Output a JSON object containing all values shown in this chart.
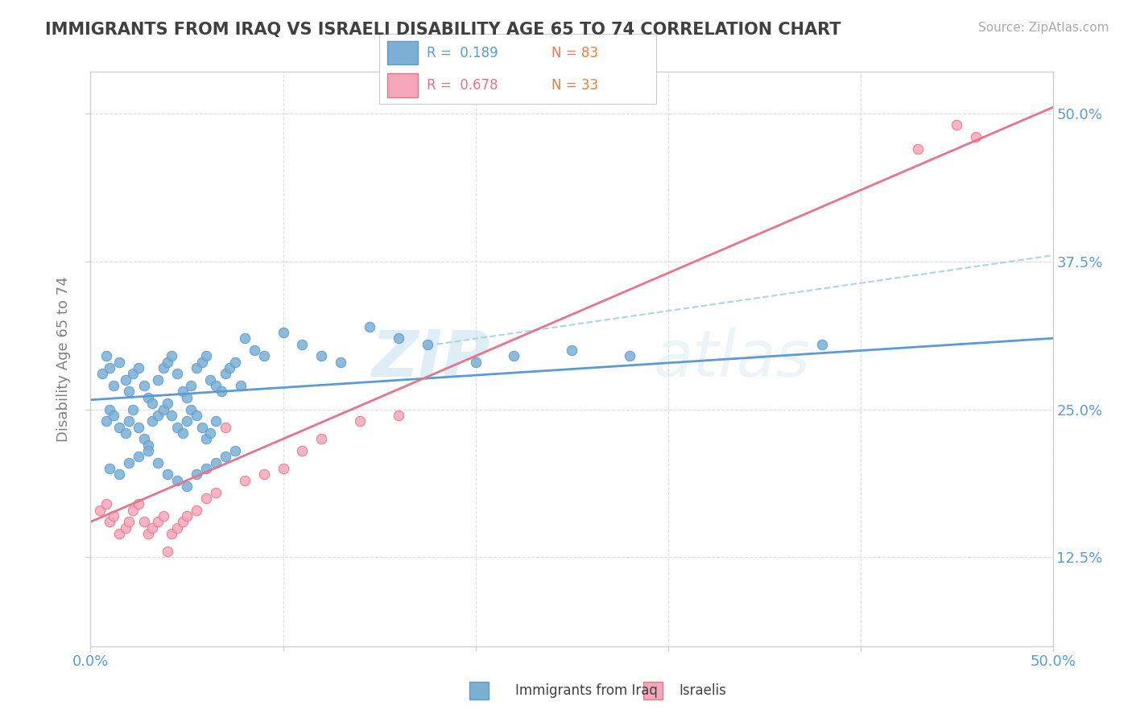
{
  "title": "IMMIGRANTS FROM IRAQ VS ISRAELI DISABILITY AGE 65 TO 74 CORRELATION CHART",
  "source_text": "Source: ZipAtlas.com",
  "ylabel": "Disability Age 65 to 74",
  "xlim": [
    0.0,
    0.5
  ],
  "ylim": [
    0.05,
    0.535
  ],
  "ytick_labels": [
    "12.5%",
    "25.0%",
    "37.5%",
    "50.0%"
  ],
  "yticks": [
    0.125,
    0.25,
    0.375,
    0.5
  ],
  "color_blue": "#7bafd4",
  "color_pink": "#f4a7b9",
  "color_blue_line": "#5b9bd5",
  "color_pink_line": "#e8748a",
  "color_dashed": "#a8d8d8",
  "color_title": "#404040",
  "color_axis_labels": "#5b9bd5",
  "color_n_labels": "#e87d3e",
  "background_color": "#ffffff",
  "watermark_text": "ZIPatlas",
  "blue_dots_x": [
    0.006,
    0.008,
    0.01,
    0.012,
    0.015,
    0.018,
    0.02,
    0.022,
    0.025,
    0.028,
    0.03,
    0.032,
    0.035,
    0.038,
    0.04,
    0.042,
    0.045,
    0.048,
    0.05,
    0.052,
    0.055,
    0.058,
    0.06,
    0.062,
    0.065,
    0.068,
    0.07,
    0.072,
    0.075,
    0.078,
    0.008,
    0.01,
    0.012,
    0.015,
    0.018,
    0.02,
    0.022,
    0.025,
    0.028,
    0.03,
    0.032,
    0.035,
    0.038,
    0.04,
    0.042,
    0.045,
    0.048,
    0.05,
    0.052,
    0.055,
    0.058,
    0.06,
    0.062,
    0.065,
    0.01,
    0.015,
    0.02,
    0.025,
    0.03,
    0.035,
    0.04,
    0.045,
    0.05,
    0.055,
    0.06,
    0.065,
    0.07,
    0.075,
    0.08,
    0.085,
    0.09,
    0.1,
    0.11,
    0.12,
    0.13,
    0.145,
    0.16,
    0.175,
    0.2,
    0.22,
    0.25,
    0.28,
    0.38
  ],
  "blue_dots_y": [
    0.28,
    0.295,
    0.285,
    0.27,
    0.29,
    0.275,
    0.265,
    0.28,
    0.285,
    0.27,
    0.26,
    0.255,
    0.275,
    0.285,
    0.29,
    0.295,
    0.28,
    0.265,
    0.26,
    0.27,
    0.285,
    0.29,
    0.295,
    0.275,
    0.27,
    0.265,
    0.28,
    0.285,
    0.29,
    0.27,
    0.24,
    0.25,
    0.245,
    0.235,
    0.23,
    0.24,
    0.25,
    0.235,
    0.225,
    0.22,
    0.24,
    0.245,
    0.25,
    0.255,
    0.245,
    0.235,
    0.23,
    0.24,
    0.25,
    0.245,
    0.235,
    0.225,
    0.23,
    0.24,
    0.2,
    0.195,
    0.205,
    0.21,
    0.215,
    0.205,
    0.195,
    0.19,
    0.185,
    0.195,
    0.2,
    0.205,
    0.21,
    0.215,
    0.31,
    0.3,
    0.295,
    0.315,
    0.305,
    0.295,
    0.29,
    0.32,
    0.31,
    0.305,
    0.29,
    0.295,
    0.3,
    0.295,
    0.305
  ],
  "pink_dots_x": [
    0.005,
    0.008,
    0.01,
    0.012,
    0.015,
    0.018,
    0.02,
    0.022,
    0.025,
    0.028,
    0.03,
    0.032,
    0.035,
    0.038,
    0.04,
    0.042,
    0.045,
    0.048,
    0.05,
    0.055,
    0.06,
    0.065,
    0.07,
    0.08,
    0.09,
    0.1,
    0.11,
    0.12,
    0.14,
    0.16,
    0.43,
    0.45,
    0.46
  ],
  "pink_dots_y": [
    0.165,
    0.17,
    0.155,
    0.16,
    0.145,
    0.15,
    0.155,
    0.165,
    0.17,
    0.155,
    0.145,
    0.15,
    0.155,
    0.16,
    0.13,
    0.145,
    0.15,
    0.155,
    0.16,
    0.165,
    0.175,
    0.18,
    0.235,
    0.19,
    0.195,
    0.2,
    0.215,
    0.225,
    0.24,
    0.245,
    0.47,
    0.49,
    0.48
  ],
  "blue_line_x": [
    0.0,
    0.5
  ],
  "blue_line_y_start": 0.258,
  "blue_line_y_end": 0.31,
  "pink_line_x": [
    0.0,
    0.5
  ],
  "pink_line_y_start": 0.155,
  "pink_line_y_end": 0.505,
  "dashed_line_x": [
    0.18,
    0.5
  ],
  "dashed_line_y_start": 0.305,
  "dashed_line_y_end": 0.38
}
